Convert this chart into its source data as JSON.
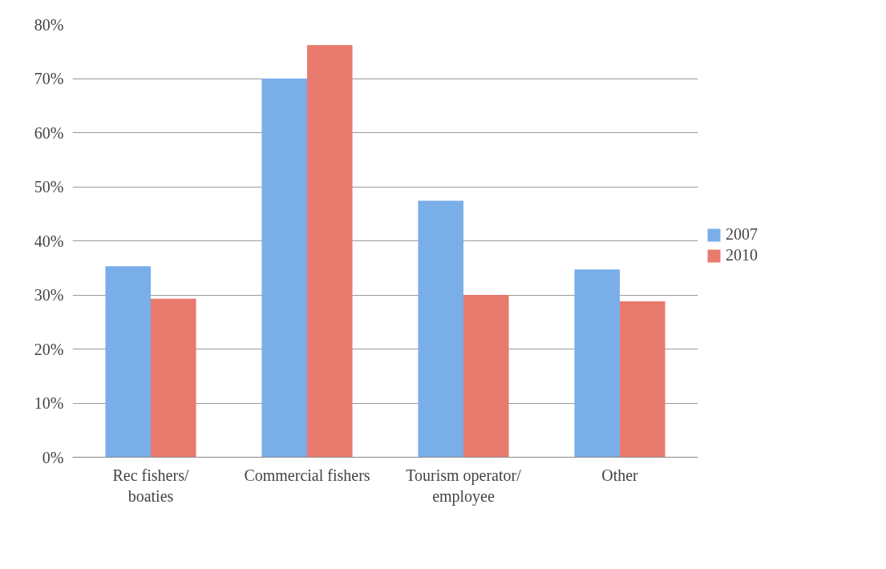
{
  "chart_data": {
    "type": "bar",
    "categories": [
      "Rec fishers/\nboaties",
      "Commercial fishers",
      "Tourism operator/\nemployee",
      "Other"
    ],
    "series": [
      {
        "name": "2007",
        "color": "#79aee9",
        "values": [
          35.3,
          70,
          47.4,
          34.7
        ]
      },
      {
        "name": "2010",
        "color": "#e97a6e",
        "values": [
          29.3,
          76.2,
          30,
          28.8
        ]
      }
    ],
    "ylim": [
      0,
      80
    ],
    "yticks": [
      {
        "value": 0,
        "label": "0%"
      },
      {
        "value": 10,
        "label": "10%"
      },
      {
        "value": 20,
        "label": "20%"
      },
      {
        "value": 30,
        "label": "30%"
      },
      {
        "value": 40,
        "label": "40%"
      },
      {
        "value": 50,
        "label": "50%"
      },
      {
        "value": 60,
        "label": "60%"
      },
      {
        "value": 70,
        "label": "70%"
      },
      {
        "value": 80,
        "label": "80%"
      }
    ],
    "grid": "y",
    "legend": "right"
  }
}
